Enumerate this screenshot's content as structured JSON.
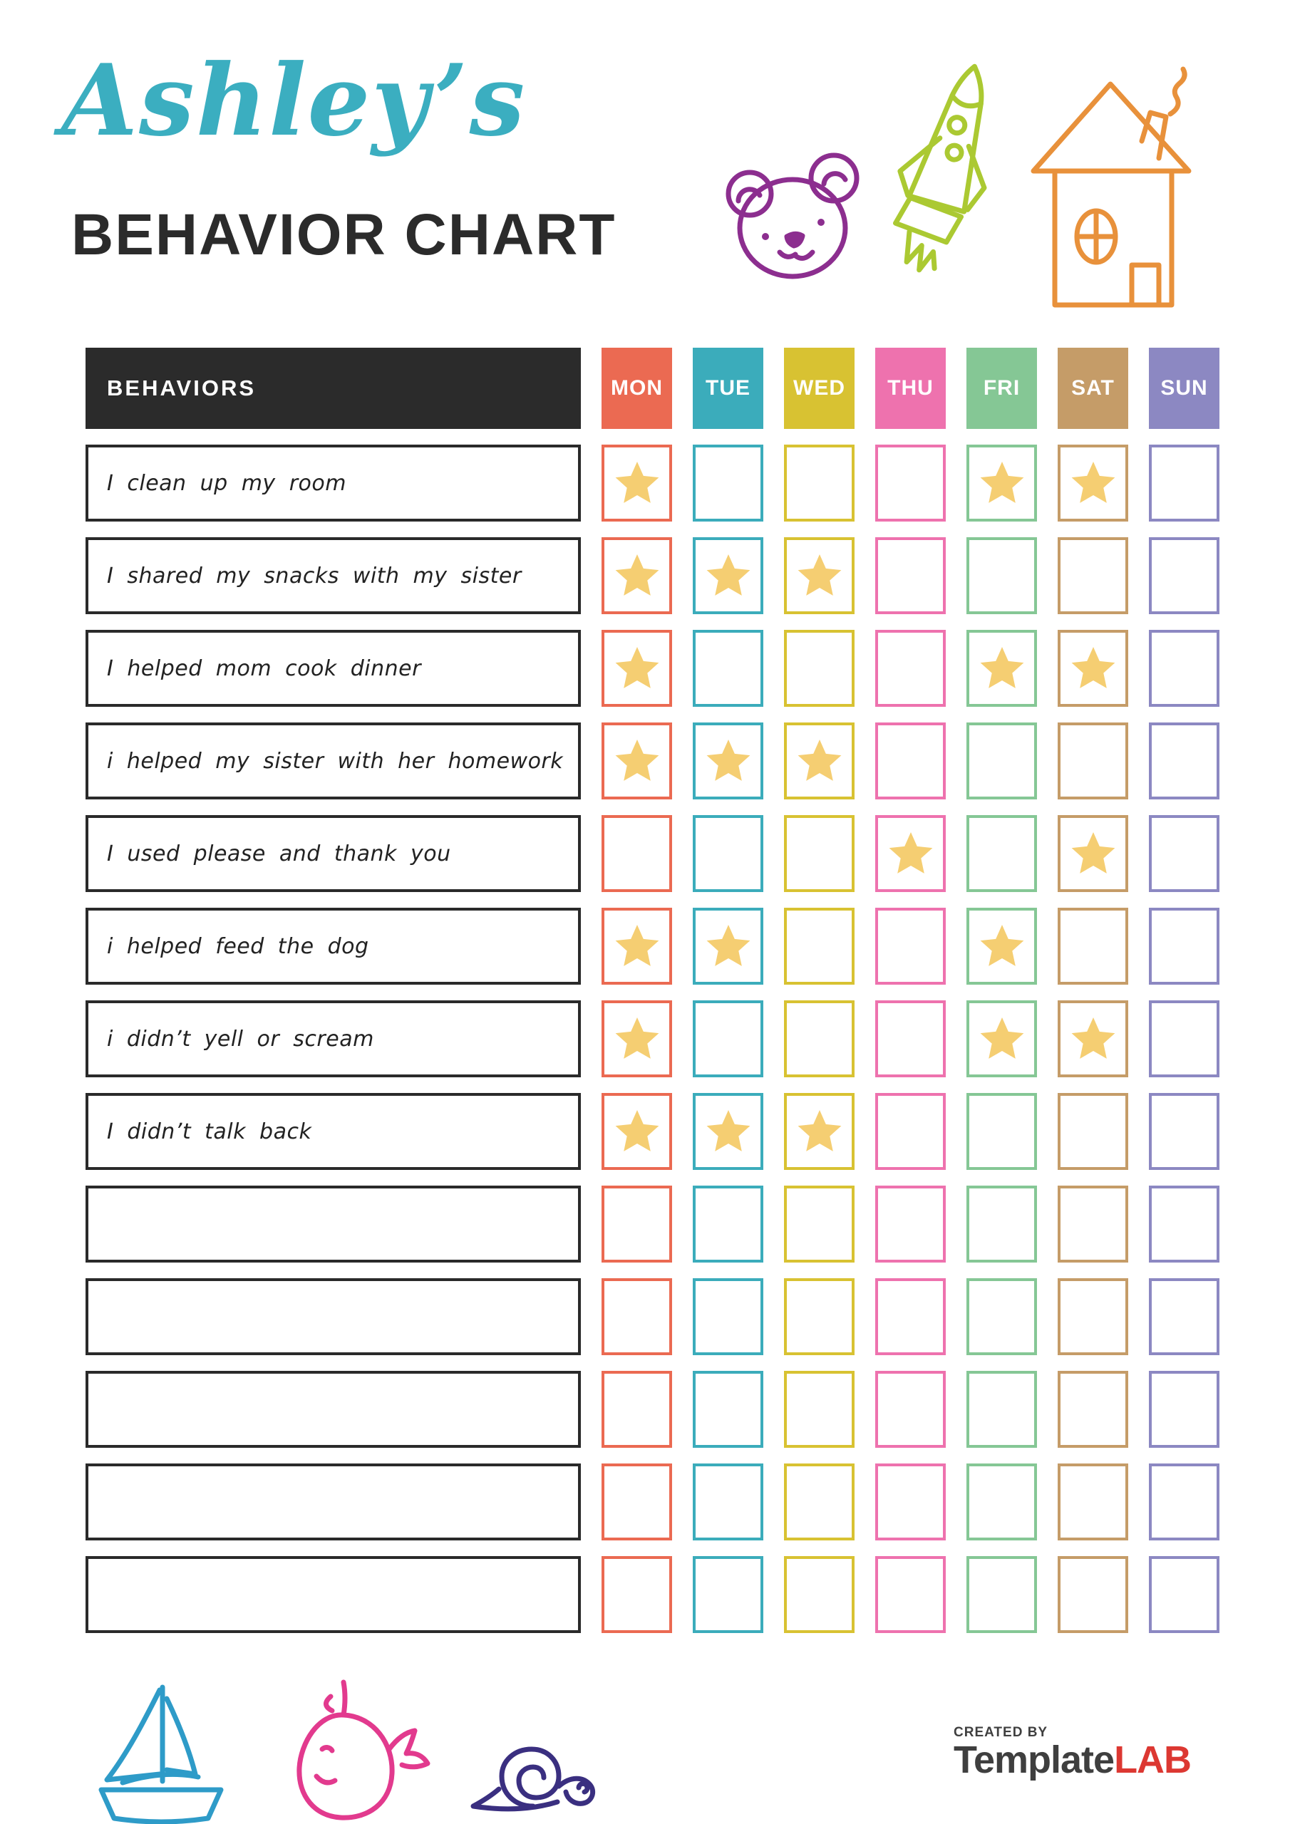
{
  "page_title": {
    "name": "Ashley’s",
    "subtitle": "BEHAVIOR CHART"
  },
  "table": {
    "behaviors_label": "BEHAVIORS",
    "days": [
      {
        "label": "MON",
        "color": "#EB6A52"
      },
      {
        "label": "TUE",
        "color": "#3BACBB"
      },
      {
        "label": "WED",
        "color": "#D8C232"
      },
      {
        "label": "THU",
        "color": "#EE72AE"
      },
      {
        "label": "FRI",
        "color": "#85C795"
      },
      {
        "label": "SAT",
        "color": "#C59C68"
      },
      {
        "label": "SUN",
        "color": "#8C88C2"
      }
    ],
    "star_color": "#F5CE72",
    "rows": [
      {
        "label": "I clean up my room",
        "stars": [
          1,
          0,
          0,
          0,
          1,
          1,
          0
        ]
      },
      {
        "label": "I shared my snacks with my sister",
        "stars": [
          1,
          1,
          1,
          0,
          0,
          0,
          0
        ]
      },
      {
        "label": "I helped mom cook dinner",
        "stars": [
          1,
          0,
          0,
          0,
          1,
          1,
          0
        ]
      },
      {
        "label": "i helped my sister with her homework",
        "stars": [
          1,
          1,
          1,
          0,
          0,
          0,
          0
        ]
      },
      {
        "label": "I used please and thank you",
        "stars": [
          0,
          0,
          0,
          1,
          0,
          1,
          0
        ]
      },
      {
        "label": "i helped feed the dog",
        "stars": [
          1,
          1,
          0,
          0,
          1,
          0,
          0
        ]
      },
      {
        "label": "i didn’t yell or scream",
        "stars": [
          1,
          0,
          0,
          0,
          1,
          1,
          0
        ]
      },
      {
        "label": "I didn’t talk back",
        "stars": [
          1,
          1,
          1,
          0,
          0,
          0,
          0
        ]
      },
      {
        "label": "",
        "stars": [
          0,
          0,
          0,
          0,
          0,
          0,
          0
        ]
      },
      {
        "label": "",
        "stars": [
          0,
          0,
          0,
          0,
          0,
          0,
          0
        ]
      },
      {
        "label": "",
        "stars": [
          0,
          0,
          0,
          0,
          0,
          0,
          0
        ]
      },
      {
        "label": "",
        "stars": [
          0,
          0,
          0,
          0,
          0,
          0,
          0
        ]
      },
      {
        "label": "",
        "stars": [
          0,
          0,
          0,
          0,
          0,
          0,
          0
        ]
      }
    ]
  },
  "decorations": {
    "bear_color": "#8C2E8F",
    "rocket_color": "#ABC932",
    "house_color": "#E8913B",
    "sailboat_color": "#2E9BC8",
    "whale_color": "#E23A8E",
    "snail_color": "#3A2F80"
  },
  "footer": {
    "created_by": "CREATED BY",
    "brand_first": "Template",
    "brand_second": "LAB"
  },
  "colors": {
    "title_script": "#3BAEC0",
    "title_dark": "#2B2B2B",
    "header_bg": "#2B2B2B",
    "row_border": "#2A2A2A",
    "brand_gray": "#3F3F3F",
    "brand_red": "#DC3832"
  }
}
